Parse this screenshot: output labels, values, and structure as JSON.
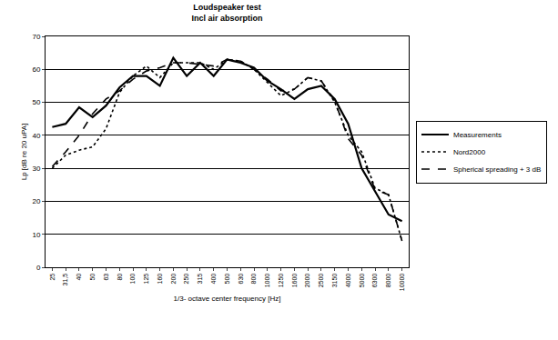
{
  "chart_data": {
    "type": "line",
    "title": "Loudspeaker test",
    "subtitle": "Incl air absorption",
    "x_label": "1/3- octave center frequency [Hz]",
    "y_label": "Lp [dB re 20 uPA]",
    "categories": [
      "25",
      "31,5",
      "40",
      "50",
      "63",
      "80",
      "100",
      "125",
      "160",
      "200",
      "250",
      "315",
      "400",
      "500",
      "630",
      "800",
      "1000",
      "1250",
      "1600",
      "2000",
      "2500",
      "3150",
      "4000",
      "5000",
      "6300",
      "8000",
      "10000"
    ],
    "series": [
      {
        "name": "Measurements",
        "color": "#000000",
        "line_style": "solid",
        "values": [
          42.5,
          43.5,
          48.5,
          45.5,
          49,
          54.5,
          58,
          58,
          55,
          63.5,
          58,
          62,
          58,
          63,
          62,
          60.5,
          56.5,
          54,
          51,
          54,
          55,
          51,
          43.5,
          30,
          23,
          16,
          14
        ]
      },
      {
        "name": "Nord2000",
        "color": "#000000",
        "line_style": "dot",
        "values": [
          30,
          34,
          35.5,
          36.5,
          42,
          53,
          58,
          61,
          57.5,
          62,
          62,
          62,
          60,
          63,
          62.5,
          60,
          56,
          52,
          54,
          57.5,
          56.5,
          50,
          40,
          35,
          24,
          22,
          8
        ]
      },
      {
        "name": "Spherical spreading + 3 dB",
        "color": "#000000",
        "line_style": "dash",
        "values": [
          30.5,
          35,
          40,
          46.5,
          51,
          53.5,
          57,
          59.5,
          60.5,
          62,
          62,
          61.5,
          61,
          63,
          62.5,
          60,
          57,
          53.5,
          54,
          57.5,
          56.5,
          50.5,
          39,
          34,
          23.5,
          22,
          8
        ]
      }
    ],
    "ylim": [
      0,
      70
    ],
    "yticks": [
      0,
      10,
      20,
      30,
      40,
      50,
      60,
      70
    ],
    "grid": true,
    "legend": "right"
  }
}
